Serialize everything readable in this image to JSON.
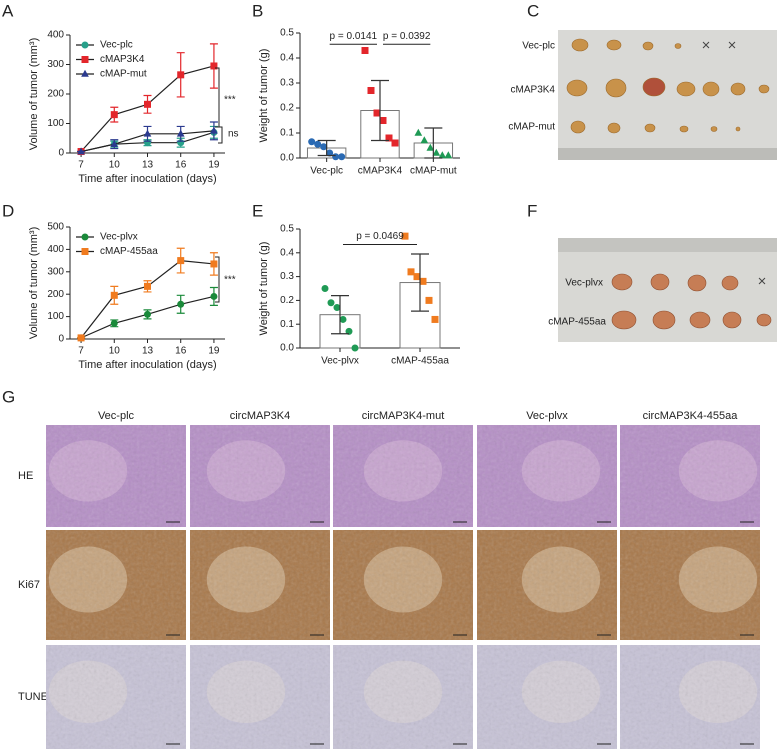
{
  "panel_labels": [
    "A",
    "B",
    "C",
    "D",
    "E",
    "F",
    "G"
  ],
  "chart_data": [
    {
      "type": "line",
      "xlabel": "Time after inoculation (days)",
      "ylabel": "Volume of tumor (mm³)",
      "x": [
        7,
        10,
        13,
        16,
        19
      ],
      "xlim": [
        6,
        20
      ],
      "xticks": [
        7,
        10,
        13,
        16,
        19
      ],
      "ylim": [
        0,
        400
      ],
      "yticks": [
        0,
        100,
        200,
        300,
        400
      ],
      "legend": "upper left",
      "series": [
        {
          "name": "Vec-plc",
          "color": "#27a08a",
          "marker": "circle",
          "values": [
            5,
            30,
            35,
            35,
            70
          ],
          "errors": [
            0,
            10,
            10,
            15,
            20
          ]
        },
        {
          "name": "cMAP3K4",
          "color": "#e3262b",
          "marker": "square",
          "values": [
            5,
            130,
            165,
            265,
            295
          ],
          "errors": [
            0,
            25,
            30,
            75,
            75
          ]
        },
        {
          "name": "cMAP-mut",
          "color": "#2b3a8f",
          "marker": "triangle",
          "values": [
            5,
            30,
            65,
            65,
            75
          ],
          "errors": [
            0,
            15,
            25,
            25,
            30
          ]
        }
      ],
      "annotations": [
        "***",
        "ns"
      ]
    },
    {
      "type": "bar",
      "ylabel": "Weight of tumor (g)",
      "categories": [
        "Vec-plc",
        "cMAP3K4",
        "cMAP-mut"
      ],
      "values": [
        0.04,
        0.19,
        0.06
      ],
      "errors": [
        0.03,
        0.12,
        0.06
      ],
      "colors": [
        "#2a6ab3",
        "#e3262b",
        "#1f9a55"
      ],
      "markers": [
        "circle",
        "square",
        "triangle"
      ],
      "points": [
        [
          0.065,
          0.055,
          0.045,
          0.02,
          0.005,
          0.005
        ],
        [
          0.43,
          0.27,
          0.18,
          0.15,
          0.08,
          0.06
        ],
        [
          0.1,
          0.07,
          0.04,
          0.02,
          0.01,
          0.01
        ]
      ],
      "ylim": [
        0,
        0.5
      ],
      "yticks": [
        {
          "value": 0,
          "label": "0.0"
        },
        0.1,
        0.2,
        0.3,
        0.4,
        0.5
      ],
      "annotations": [
        "p = 0.0141",
        "p = 0.0392"
      ]
    },
    {
      "type": "line",
      "xlabel": "Time after inoculation (days)",
      "ylabel": "Volume of tumor (mm³)",
      "x": [
        7,
        10,
        13,
        16,
        19
      ],
      "xlim": [
        6,
        20
      ],
      "xticks": [
        7,
        10,
        13,
        16,
        19
      ],
      "ylim": [
        0,
        500
      ],
      "yticks": [
        0,
        100,
        200,
        300,
        400,
        500
      ],
      "legend": "upper left",
      "series": [
        {
          "name": "Vec-plvx",
          "color": "#1a8a3a",
          "marker": "circle",
          "values": [
            5,
            70,
            110,
            155,
            190
          ],
          "errors": [
            0,
            15,
            20,
            40,
            40
          ]
        },
        {
          "name": "cMAP-455aa",
          "color": "#f07b1f",
          "marker": "square",
          "values": [
            5,
            195,
            235,
            350,
            335
          ],
          "errors": [
            0,
            40,
            25,
            55,
            50
          ]
        }
      ],
      "annotations": [
        "***"
      ]
    },
    {
      "type": "bar",
      "ylabel": "Weight of tumor (g)",
      "categories": [
        "Vec-plvx",
        "cMAP-455aa"
      ],
      "values": [
        0.14,
        0.275
      ],
      "errors": [
        0.08,
        0.12
      ],
      "colors": [
        "#1f9a55",
        "#f07b1f"
      ],
      "markers": [
        "circle",
        "square"
      ],
      "points": [
        [
          0.25,
          0.19,
          0.17,
          0.12,
          0.07,
          0.0
        ],
        [
          0.47,
          0.32,
          0.3,
          0.28,
          0.2,
          0.12
        ]
      ],
      "ylim": [
        0,
        0.5
      ],
      "yticks": [
        {
          "value": 0,
          "label": "0.0"
        },
        0.1,
        0.2,
        0.3,
        0.4,
        0.5
      ],
      "annotations": [
        "p = 0.0469"
      ]
    }
  ],
  "photo_c": {
    "rows": [
      "Vec-plc",
      "cMAP3K4",
      "cMAP-mut"
    ]
  },
  "photo_f": {
    "rows": [
      "Vec-plvx",
      "cMAP-455aa"
    ]
  },
  "histology": {
    "columns": [
      "Vec-plc",
      "circMAP3K4",
      "circMAP3K4-mut",
      "Vec-plvx",
      "circMAP3K4-455aa"
    ],
    "rows": [
      "HE",
      "Ki67",
      "TUNEL"
    ]
  }
}
